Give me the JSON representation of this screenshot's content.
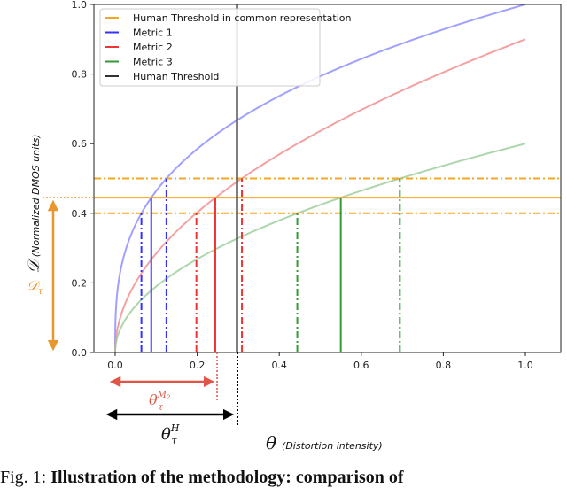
{
  "chart_data": {
    "type": "line",
    "title": "",
    "xlabel": "θ (Distortion intensity)",
    "xlabel_symbol": "θ",
    "xlabel_sub": "(Distortion intensity)",
    "ylabel": "D (Normalized DMOS units)",
    "ylabel_symbol": "𝒟",
    "ylabel_sub": "(Normalized DMOS units)",
    "xlim": [
      -0.05,
      1.05
    ],
    "ylim": [
      0.0,
      1.0
    ],
    "x_ticks": [
      "0.0",
      "0.2",
      "0.4",
      "0.6",
      "0.8",
      "1.0"
    ],
    "y_ticks": [
      "0.0",
      "0.2",
      "0.4",
      "0.6",
      "0.8",
      "1.0"
    ],
    "grid": false,
    "legend_position": "upper left",
    "legend": [
      {
        "label": "Human Threshold in common representation",
        "color": "#f5a623"
      },
      {
        "label": "Metric 1",
        "color": "#3333ff"
      },
      {
        "label": "Metric 2",
        "color": "#ee3333"
      },
      {
        "label": "Metric 3",
        "color": "#339933"
      },
      {
        "label": "Human Threshold",
        "color": "#333333"
      }
    ],
    "series": [
      {
        "name": "Metric 1",
        "formula": "x^(1/3)",
        "color": "#8888ff",
        "x": [
          0,
          0.01,
          0.05,
          0.1,
          0.2,
          0.3,
          0.4,
          0.5,
          0.6,
          0.7,
          0.8,
          0.9,
          1.0
        ],
        "values": [
          0,
          0.215,
          0.368,
          0.464,
          0.585,
          0.669,
          0.737,
          0.794,
          0.843,
          0.888,
          0.928,
          0.965,
          1.0
        ]
      },
      {
        "name": "Metric 2",
        "formula": "0.9*sqrt(x)",
        "color": "#f08a8a",
        "x": [
          0,
          0.01,
          0.05,
          0.1,
          0.2,
          0.3,
          0.4,
          0.5,
          0.6,
          0.7,
          0.8,
          0.9,
          1.0
        ],
        "values": [
          0,
          0.09,
          0.201,
          0.285,
          0.402,
          0.493,
          0.569,
          0.636,
          0.697,
          0.753,
          0.805,
          0.854,
          0.9
        ]
      },
      {
        "name": "Metric 3",
        "formula": "0.6*sqrt(x)",
        "color": "#99cc99",
        "x": [
          0,
          0.01,
          0.05,
          0.1,
          0.2,
          0.3,
          0.4,
          0.5,
          0.6,
          0.7,
          0.8,
          0.9,
          1.0
        ],
        "values": [
          0,
          0.06,
          0.134,
          0.19,
          0.268,
          0.329,
          0.379,
          0.424,
          0.465,
          0.502,
          0.537,
          0.569,
          0.6
        ]
      }
    ],
    "horizontal_lines": [
      {
        "y": 0.5,
        "style": "dashdot",
        "color": "#f5a623"
      },
      {
        "y": 0.445,
        "style": "solid",
        "color": "#f5a623",
        "label": "Human Threshold in common representation"
      },
      {
        "y": 0.4,
        "style": "dashdot",
        "color": "#f5a623"
      }
    ],
    "vertical_lines": [
      {
        "x": 0.297,
        "style": "solid",
        "color": "#555555",
        "label": "Human Threshold",
        "y_top": 1.0
      },
      {
        "x": 0.064,
        "style": "dashdot",
        "color": "#3333ff",
        "y_top": 0.4
      },
      {
        "x": 0.088,
        "style": "solid",
        "color": "#3333ff",
        "y_top": 0.445
      },
      {
        "x": 0.125,
        "style": "dashdot",
        "color": "#3333ff",
        "y_top": 0.5
      },
      {
        "x": 0.198,
        "style": "dashdot",
        "color": "#ee3333",
        "y_top": 0.4
      },
      {
        "x": 0.244,
        "style": "solid",
        "color": "#ee3333",
        "y_top": 0.445
      },
      {
        "x": 0.309,
        "style": "dashdot",
        "color": "#ee3333",
        "y_top": 0.5
      },
      {
        "x": 0.444,
        "style": "dashdot",
        "color": "#339933",
        "y_top": 0.4
      },
      {
        "x": 0.55,
        "style": "solid",
        "color": "#339933",
        "y_top": 0.445
      },
      {
        "x": 0.694,
        "style": "dashdot",
        "color": "#339933",
        "y_top": 0.5
      }
    ],
    "annotations": [
      {
        "text": "𝒟τ",
        "color": "#e8962e",
        "type": "double-arrow-vertical",
        "from": 0.0,
        "to": 0.445
      },
      {
        "text": "θτ^M2",
        "color": "#e05545",
        "type": "double-arrow-horizontal",
        "from": 0.0,
        "to": 0.244
      },
      {
        "text": "θτ^H",
        "color": "#111111",
        "type": "double-arrow-horizontal",
        "from": 0.0,
        "to": 0.297
      }
    ]
  },
  "annotations": {
    "d_tau_main": "𝒟",
    "d_tau_sub": "τ",
    "theta_m2_main": "θ",
    "theta_m2_sup": "M",
    "theta_m2_sup_sub": "2",
    "theta_m2_sub": "τ",
    "theta_h_main": "θ",
    "theta_h_sup": "H",
    "theta_h_sub": "τ"
  },
  "caption": {
    "prefix": "Fig. 1: ",
    "bold": "Illustration of the methodology: comparison of"
  }
}
